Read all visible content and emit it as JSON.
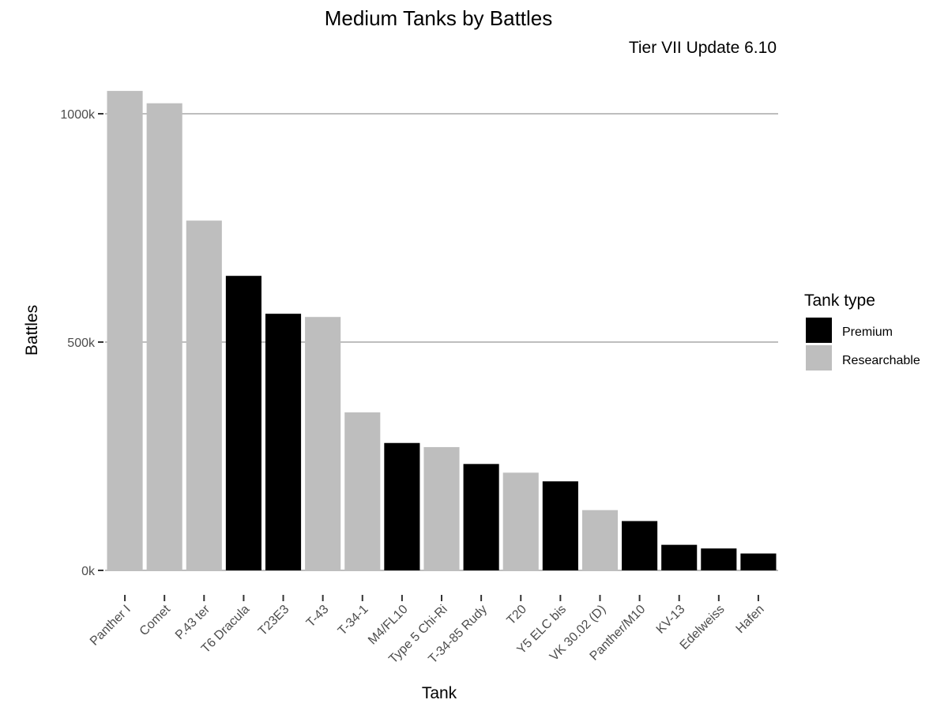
{
  "chart_data": {
    "type": "bar",
    "title": "Medium Tanks by Battles",
    "subtitle": "Tier VII Update 6.10",
    "xlabel": "Tank",
    "ylabel": "Battles",
    "ylim": [
      0,
      1080000
    ],
    "yticks": [
      0,
      500000,
      1000000
    ],
    "ytick_labels": [
      "0k",
      "500k",
      "1000k"
    ],
    "grid": "horizontal",
    "legend_position": "right",
    "legend": {
      "title": "Tank type",
      "entries": [
        {
          "name": "Premium",
          "color": "#000000"
        },
        {
          "name": "Researchable",
          "color": "#bebebe"
        }
      ]
    },
    "categories": [
      "Panther I",
      "Comet",
      "P.43 ter",
      "T6 Dracula",
      "T23E3",
      "T-43",
      "T-34-1",
      "M4/FL10",
      "Type 5 Chi-Ri",
      "T-34-85 Rudy",
      "T20",
      "Y5 ELC bis",
      "VK 30.02 (D)",
      "Panther/M10",
      "KV-13",
      "Edelweiss",
      "Hafen"
    ],
    "values": [
      1050000,
      1023000,
      766000,
      645000,
      562000,
      555000,
      346000,
      279000,
      270000,
      233000,
      214000,
      195000,
      132000,
      108000,
      56000,
      48000,
      37000
    ],
    "types": [
      "Researchable",
      "Researchable",
      "Researchable",
      "Premium",
      "Premium",
      "Researchable",
      "Researchable",
      "Premium",
      "Researchable",
      "Premium",
      "Researchable",
      "Premium",
      "Researchable",
      "Premium",
      "Premium",
      "Premium",
      "Premium"
    ]
  }
}
